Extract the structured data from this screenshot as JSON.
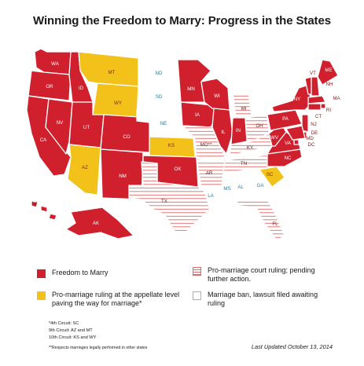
{
  "title": "Winning the Freedom to Marry: Progress in the States",
  "colors": {
    "freedom": "#d0202e",
    "pending_appellate": "#f3c21a",
    "court_ruling_stripe": "#e06a6a",
    "ban_lawsuit_stroke": "#7ec4c1",
    "label_on_red": "#ffffff",
    "label_on_other": "#2b7fa3"
  },
  "map": {
    "states": [
      {
        "abbr": "WA",
        "status": "freedom"
      },
      {
        "abbr": "OR",
        "status": "freedom"
      },
      {
        "abbr": "CA",
        "status": "freedom"
      },
      {
        "abbr": "NV",
        "status": "freedom"
      },
      {
        "abbr": "ID",
        "status": "freedom"
      },
      {
        "abbr": "MT",
        "status": "pending_appellate"
      },
      {
        "abbr": "WY",
        "status": "pending_appellate"
      },
      {
        "abbr": "UT",
        "status": "freedom"
      },
      {
        "abbr": "CO",
        "status": "freedom"
      },
      {
        "abbr": "AZ",
        "status": "pending_appellate"
      },
      {
        "abbr": "NM",
        "status": "freedom"
      },
      {
        "abbr": "ND",
        "status": "ban_lawsuit"
      },
      {
        "abbr": "SD",
        "status": "ban_lawsuit"
      },
      {
        "abbr": "NE",
        "status": "ban_lawsuit"
      },
      {
        "abbr": "KS",
        "status": "pending_appellate"
      },
      {
        "abbr": "OK",
        "status": "freedom"
      },
      {
        "abbr": "TX",
        "status": "court_ruling"
      },
      {
        "abbr": "MN",
        "status": "freedom"
      },
      {
        "abbr": "IA",
        "status": "freedom"
      },
      {
        "abbr": "MO",
        "status": "court_ruling",
        "label": "MO**"
      },
      {
        "abbr": "AR",
        "status": "court_ruling"
      },
      {
        "abbr": "LA",
        "status": "ban_lawsuit"
      },
      {
        "abbr": "WI",
        "status": "freedom"
      },
      {
        "abbr": "IL",
        "status": "freedom"
      },
      {
        "abbr": "MI",
        "status": "court_ruling"
      },
      {
        "abbr": "IN",
        "status": "freedom"
      },
      {
        "abbr": "OH",
        "status": "court_ruling"
      },
      {
        "abbr": "KY",
        "status": "court_ruling"
      },
      {
        "abbr": "TN",
        "status": "court_ruling"
      },
      {
        "abbr": "MS",
        "status": "ban_lawsuit"
      },
      {
        "abbr": "AL",
        "status": "ban_lawsuit"
      },
      {
        "abbr": "GA",
        "status": "ban_lawsuit"
      },
      {
        "abbr": "FL",
        "status": "court_ruling"
      },
      {
        "abbr": "SC",
        "status": "pending_appellate"
      },
      {
        "abbr": "NC",
        "status": "freedom"
      },
      {
        "abbr": "VA",
        "status": "freedom"
      },
      {
        "abbr": "WV",
        "status": "freedom"
      },
      {
        "abbr": "PA",
        "status": "freedom"
      },
      {
        "abbr": "NY",
        "status": "freedom"
      },
      {
        "abbr": "VT",
        "status": "freedom"
      },
      {
        "abbr": "NH",
        "status": "freedom"
      },
      {
        "abbr": "ME",
        "status": "freedom"
      },
      {
        "abbr": "MA",
        "status": "freedom"
      },
      {
        "abbr": "RI",
        "status": "freedom"
      },
      {
        "abbr": "CT",
        "status": "freedom"
      },
      {
        "abbr": "NJ",
        "status": "freedom"
      },
      {
        "abbr": "DE",
        "status": "freedom"
      },
      {
        "abbr": "MD",
        "status": "freedom"
      },
      {
        "abbr": "DC",
        "status": "freedom"
      },
      {
        "abbr": "AK",
        "status": "freedom"
      },
      {
        "abbr": "HI",
        "status": "freedom"
      }
    ]
  },
  "legend": {
    "freedom": "Freedom to Marry",
    "pending_appellate": "Pro-marriage ruling at the appellate level paving the way for marriage*",
    "court_ruling": "Pro-marriage court ruling; pending further action.",
    "ban_lawsuit": "Marriage ban, lawsuit filed awaiting ruling"
  },
  "notes": [
    "*4th Circuit: SC",
    "9th Circuit: AZ and MT",
    "10th Circuit: KS and WY"
  ],
  "footnote": "**Respects marriages legally performed in other states",
  "updated": "Last Updated October 13, 2014"
}
